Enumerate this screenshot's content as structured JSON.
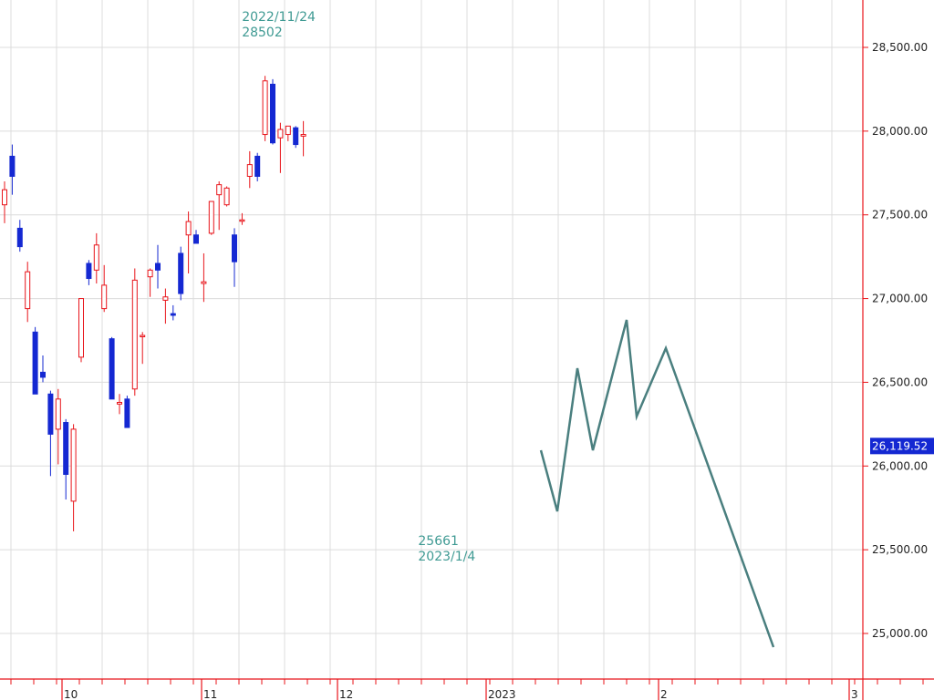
{
  "chart_data": {
    "type": "candlestick",
    "colors": {
      "up": "#e8141a",
      "down": "#1428d2",
      "forecast_red": "#e8141a",
      "forecast_teal": "#4a7f7f",
      "annotation": "#3f9a93",
      "axis": "#e8141a",
      "grid": "#dcdcdc",
      "current_price_bg": "#1428d2"
    },
    "y_axis": {
      "range": [
        24760,
        28870
      ],
      "ticks": [
        25000,
        25500,
        26000,
        26500,
        27000,
        27500,
        28000,
        28500
      ],
      "tick_labels": [
        "25,000.00",
        "25,500.00",
        "26,000.00",
        "26,500.00",
        "27,000.00",
        "27,500.00",
        "28,000.00",
        "28,500.00"
      ],
      "position": "right"
    },
    "x_axis": {
      "labels": [
        {
          "text": "10",
          "slot": 0
        },
        {
          "text": "11",
          "slot": 20
        },
        {
          "text": "12",
          "slot": 39
        },
        {
          "text": "2023",
          "slot": 58
        },
        {
          "text": "2",
          "slot": 79
        },
        {
          "text": "3",
          "slot": 98
        }
      ]
    },
    "current_price": {
      "value": 26119.52,
      "label": "26,119.52"
    },
    "annotations": [
      {
        "id": "high",
        "lines": [
          "2022/11/24",
          "28502"
        ],
        "slot": 33,
        "value": 28502,
        "placement": "above"
      },
      {
        "id": "low",
        "lines": [
          "25661",
          "2023/1/4"
        ],
        "slot": 56,
        "value": 25661,
        "placement": "below"
      }
    ],
    "candles": [
      {
        "o": 27560,
        "h": 27700,
        "l": 27450,
        "c": 27650
      },
      {
        "o": 27850,
        "h": 27920,
        "l": 27620,
        "c": 27730
      },
      {
        "o": 27420,
        "h": 27470,
        "l": 27280,
        "c": 27310
      },
      {
        "o": 26940,
        "h": 27220,
        "l": 26860,
        "c": 27160
      },
      {
        "o": 26800,
        "h": 26830,
        "l": 26430,
        "c": 26430
      },
      {
        "o": 26560,
        "h": 26660,
        "l": 26500,
        "c": 26530
      },
      {
        "o": 26430,
        "h": 26450,
        "l": 25940,
        "c": 26190
      },
      {
        "o": 26220,
        "h": 26460,
        "l": 26010,
        "c": 26400
      },
      {
        "o": 26260,
        "h": 26280,
        "l": 25800,
        "c": 25950
      },
      {
        "o": 25790,
        "h": 26250,
        "l": 25610,
        "c": 26220
      },
      {
        "o": 26650,
        "h": 27000,
        "l": 26620,
        "c": 27000
      },
      {
        "o": 27210,
        "h": 27230,
        "l": 27080,
        "c": 27120
      },
      {
        "o": 27170,
        "h": 27390,
        "l": 27090,
        "c": 27320
      },
      {
        "o": 26940,
        "h": 27200,
        "l": 26920,
        "c": 27080
      },
      {
        "o": 26760,
        "h": 26770,
        "l": 26400,
        "c": 26400
      },
      {
        "o": 26370,
        "h": 26430,
        "l": 26310,
        "c": 26380
      },
      {
        "o": 26400,
        "h": 26420,
        "l": 26230,
        "c": 26230
      },
      {
        "o": 26460,
        "h": 27180,
        "l": 26420,
        "c": 27110
      },
      {
        "o": 26780,
        "h": 26800,
        "l": 26610,
        "c": 26780
      },
      {
        "o": 27130,
        "h": 27180,
        "l": 27010,
        "c": 27170
      },
      {
        "o": 27210,
        "h": 27320,
        "l": 27060,
        "c": 27170
      },
      {
        "o": 26990,
        "h": 27060,
        "l": 26850,
        "c": 27010
      },
      {
        "o": 26910,
        "h": 26960,
        "l": 26870,
        "c": 26900
      },
      {
        "o": 27270,
        "h": 27310,
        "l": 26990,
        "c": 27030
      },
      {
        "o": 27380,
        "h": 27520,
        "l": 27150,
        "c": 27460
      },
      {
        "o": 27380,
        "h": 27410,
        "l": 27330,
        "c": 27330
      },
      {
        "o": 27090,
        "h": 27270,
        "l": 26980,
        "c": 27100
      },
      {
        "o": 27390,
        "h": 27570,
        "l": 27380,
        "c": 27580
      },
      {
        "o": 27620,
        "h": 27700,
        "l": 27410,
        "c": 27680
      },
      {
        "o": 27560,
        "h": 27670,
        "l": 27550,
        "c": 27660
      },
      {
        "o": 27380,
        "h": 27420,
        "l": 27070,
        "c": 27220
      },
      {
        "o": 27470,
        "h": 27510,
        "l": 27440,
        "c": 27470
      },
      {
        "o": 27730,
        "h": 27880,
        "l": 27660,
        "c": 27800
      },
      {
        "o": 27850,
        "h": 27870,
        "l": 27700,
        "c": 27730
      },
      {
        "o": 27980,
        "h": 28330,
        "l": 27940,
        "c": 28300
      },
      {
        "o": 28280,
        "h": 28310,
        "l": 27920,
        "c": 27930
      },
      {
        "o": 27960,
        "h": 28050,
        "l": 27750,
        "c": 28010
      },
      {
        "o": 27980,
        "h": 28030,
        "l": 27940,
        "c": 28030
      },
      {
        "o": 28020,
        "h": 28030,
        "l": 27900,
        "c": 27920
      },
      {
        "o": 27970,
        "h": 28060,
        "l": 27850,
        "c": 27980
      }
    ],
    "forecast_teal": [
      {
        "x": 593,
        "y": 494
      },
      {
        "x": 611,
        "y": 561
      },
      {
        "x": 633,
        "y": 404
      },
      {
        "x": 650,
        "y": 494
      },
      {
        "x": 687,
        "y": 351
      },
      {
        "x": 698,
        "y": 457
      },
      {
        "x": 730,
        "y": 382
      },
      {
        "x": 848,
        "y": 710
      },
      {
        "x": 848,
        "y": 710
      }
    ]
  }
}
